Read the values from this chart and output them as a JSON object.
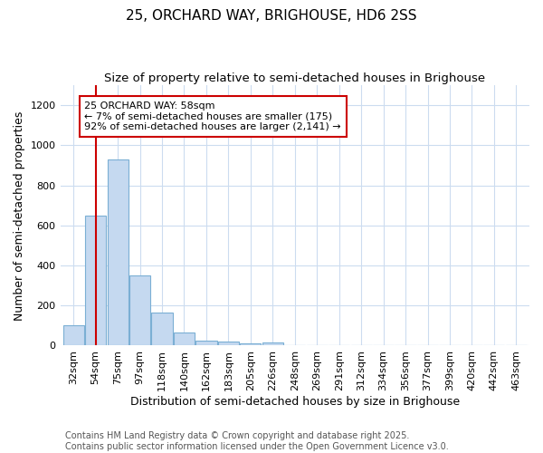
{
  "title1": "25, ORCHARD WAY, BRIGHOUSE, HD6 2SS",
  "title2": "Size of property relative to semi-detached houses in Brighouse",
  "xlabel": "Distribution of semi-detached houses by size in Brighouse",
  "ylabel": "Number of semi-detached properties",
  "bin_labels": [
    "32sqm",
    "54sqm",
    "75sqm",
    "97sqm",
    "118sqm",
    "140sqm",
    "162sqm",
    "183sqm",
    "205sqm",
    "226sqm",
    "248sqm",
    "269sqm",
    "291sqm",
    "312sqm",
    "334sqm",
    "356sqm",
    "377sqm",
    "399sqm",
    "420sqm",
    "442sqm",
    "463sqm"
  ],
  "bar_values": [
    100,
    650,
    930,
    350,
    165,
    65,
    25,
    18,
    12,
    15,
    0,
    0,
    0,
    0,
    0,
    0,
    0,
    0,
    0,
    0,
    0
  ],
  "bar_color": "#c5d9f0",
  "bar_edge_color": "#7bafd4",
  "annotation_line_color": "#cc0000",
  "annotation_text_line1": "25 ORCHARD WAY: 58sqm",
  "annotation_text_line2": "← 7% of semi-detached houses are smaller (175)",
  "annotation_text_line3": "92% of semi-detached houses are larger (2,141) →",
  "ylim": [
    0,
    1300
  ],
  "yticks": [
    0,
    200,
    400,
    600,
    800,
    1000,
    1200
  ],
  "footnote1": "Contains HM Land Registry data © Crown copyright and database right 2025.",
  "footnote2": "Contains public sector information licensed under the Open Government Licence v3.0.",
  "bg_color": "#ffffff",
  "grid_color": "#ccdcf0",
  "title_fontsize": 11,
  "subtitle_fontsize": 9.5,
  "axis_label_fontsize": 9,
  "tick_fontsize": 8,
  "footnote_fontsize": 7
}
